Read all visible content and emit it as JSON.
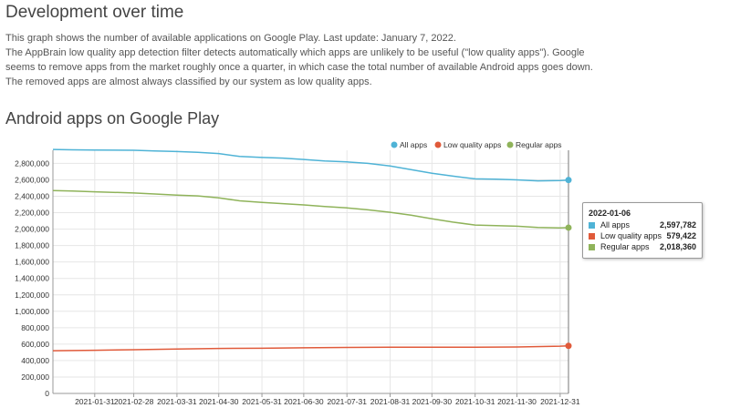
{
  "page": {
    "heading": "Development over time",
    "intro_line1": "This graph shows the number of available applications on Google Play. Last update: January 7, 2022.",
    "intro_line2": "The AppBrain low quality app detection filter detects automatically which apps are unlikely to be useful (\"low quality apps\"). Google seems to remove apps from the market roughly once a quarter, in which case the total number of available Android apps goes down. The removed apps are almost always classified by our system as low quality apps.",
    "chart_heading": "Android apps on Google Play"
  },
  "colors": {
    "all_apps": "#4fb3d6",
    "low_quality": "#e05a3a",
    "regular": "#8fb35a",
    "grid": "#e6e6e6"
  },
  "tooltip": {
    "date": "2022-01-06",
    "rows": [
      {
        "label": "All apps",
        "value": "2,597,782"
      },
      {
        "label": "Low quality apps",
        "value": "579,422"
      },
      {
        "label": "Regular apps",
        "value": "2,018,360"
      }
    ]
  },
  "chart_data": {
    "type": "line",
    "title": "Android apps on Google Play",
    "xlabel": "",
    "ylabel": "",
    "x_start": "2021-01-01",
    "x_end": "2022-01-06",
    "x_tick_labels": [
      "2021-01-31",
      "2021-02-28",
      "2021-03-31",
      "2021-04-30",
      "2021-05-31",
      "2021-06-30",
      "2021-07-31",
      "2021-08-31",
      "2021-09-30",
      "2021-10-31",
      "2021-11-30",
      "2021-12-31"
    ],
    "y_ticks": [
      0,
      200000,
      400000,
      600000,
      800000,
      1000000,
      1200000,
      1400000,
      1600000,
      1800000,
      2000000,
      2200000,
      2400000,
      2600000,
      2800000
    ],
    "y_tick_labels": [
      "0",
      "200,000",
      "400,000",
      "600,000",
      "800,000",
      "1,000,000",
      "1,200,000",
      "1,400,000",
      "1,600,000",
      "1,800,000",
      "2,000,000",
      "2,200,000",
      "2,400,000",
      "2,600,000",
      "2,800,000"
    ],
    "ylim": [
      0,
      2960000
    ],
    "grid": true,
    "legend_position": "top-right",
    "series": [
      {
        "name": "All apps",
        "color": "#4fb3d6",
        "points": [
          [
            "2021-01-01",
            2970000
          ],
          [
            "2021-01-15",
            2965000
          ],
          [
            "2021-01-31",
            2962000
          ],
          [
            "2021-02-28",
            2960000
          ],
          [
            "2021-03-15",
            2952000
          ],
          [
            "2021-03-31",
            2945000
          ],
          [
            "2021-04-15",
            2935000
          ],
          [
            "2021-04-30",
            2920000
          ],
          [
            "2021-05-15",
            2885000
          ],
          [
            "2021-05-31",
            2872000
          ],
          [
            "2021-06-15",
            2865000
          ],
          [
            "2021-06-30",
            2848000
          ],
          [
            "2021-07-15",
            2830000
          ],
          [
            "2021-07-31",
            2818000
          ],
          [
            "2021-08-15",
            2800000
          ],
          [
            "2021-08-31",
            2768000
          ],
          [
            "2021-09-15",
            2725000
          ],
          [
            "2021-09-30",
            2680000
          ],
          [
            "2021-10-15",
            2645000
          ],
          [
            "2021-10-31",
            2612000
          ],
          [
            "2021-11-15",
            2607000
          ],
          [
            "2021-11-30",
            2600000
          ],
          [
            "2021-12-15",
            2588000
          ],
          [
            "2021-12-31",
            2592000
          ],
          [
            "2022-01-06",
            2597782
          ]
        ]
      },
      {
        "name": "Low quality apps",
        "color": "#e05a3a",
        "points": [
          [
            "2021-01-01",
            520000
          ],
          [
            "2021-01-31",
            525000
          ],
          [
            "2021-02-28",
            532000
          ],
          [
            "2021-03-31",
            540000
          ],
          [
            "2021-04-30",
            548000
          ],
          [
            "2021-05-31",
            550000
          ],
          [
            "2021-06-30",
            555000
          ],
          [
            "2021-07-31",
            560000
          ],
          [
            "2021-08-31",
            563000
          ],
          [
            "2021-09-30",
            562000
          ],
          [
            "2021-10-31",
            562000
          ],
          [
            "2021-11-30",
            565000
          ],
          [
            "2021-12-31",
            575000
          ],
          [
            "2022-01-06",
            579422
          ]
        ]
      },
      {
        "name": "Regular apps",
        "color": "#8fb35a",
        "points": [
          [
            "2021-01-01",
            2470000
          ],
          [
            "2021-01-15",
            2465000
          ],
          [
            "2021-01-31",
            2455000
          ],
          [
            "2021-02-28",
            2440000
          ],
          [
            "2021-03-15",
            2428000
          ],
          [
            "2021-03-31",
            2415000
          ],
          [
            "2021-04-15",
            2405000
          ],
          [
            "2021-04-30",
            2380000
          ],
          [
            "2021-05-15",
            2345000
          ],
          [
            "2021-05-31",
            2325000
          ],
          [
            "2021-06-15",
            2310000
          ],
          [
            "2021-06-30",
            2295000
          ],
          [
            "2021-07-15",
            2275000
          ],
          [
            "2021-07-31",
            2258000
          ],
          [
            "2021-08-15",
            2235000
          ],
          [
            "2021-08-31",
            2205000
          ],
          [
            "2021-09-15",
            2170000
          ],
          [
            "2021-09-30",
            2125000
          ],
          [
            "2021-10-15",
            2085000
          ],
          [
            "2021-10-31",
            2050000
          ],
          [
            "2021-11-15",
            2042000
          ],
          [
            "2021-11-30",
            2035000
          ],
          [
            "2021-12-15",
            2020000
          ],
          [
            "2021-12-31",
            2015000
          ],
          [
            "2022-01-06",
            2018360
          ]
        ]
      }
    ]
  }
}
